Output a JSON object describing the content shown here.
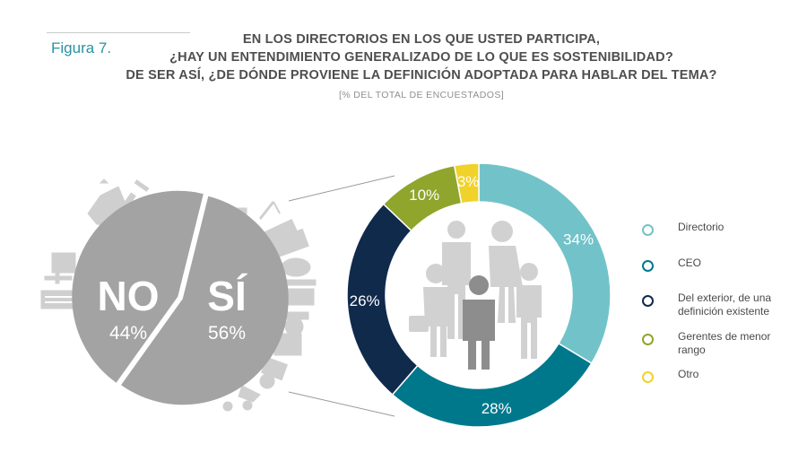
{
  "figure_label": "Figura 7.",
  "title_lines": [
    "EN LOS DIRECTORIOS EN LOS QUE USTED PARTICIPA,",
    "¿HAY UN ENTENDIMIENTO GENERALIZADO DE LO QUE ES SOSTENIBILIDAD?",
    "DE SER ASÍ, ¿DE DÓNDE PROVIENE LA DEFINICIÓN ADOPTADA PARA HABLAR DEL TEMA?"
  ],
  "subtitle": "[% DEL TOTAL DE ENCUESTADOS]",
  "chart_data": [
    {
      "type": "pie",
      "categories": [
        "NO",
        "SÍ"
      ],
      "values": [
        44,
        56
      ],
      "value_labels": [
        "44%",
        "56%"
      ],
      "colors": [
        "#a3a3a3",
        "#a3a3a3"
      ]
    },
    {
      "type": "pie",
      "categories": [
        "Directorio",
        "CEO",
        "Del exterior, de una definición existente",
        "Gerentes de menor rango",
        "Otro"
      ],
      "values": [
        34,
        28,
        26,
        10,
        3
      ],
      "value_labels": [
        "34%",
        "28%",
        "26%",
        "10%",
        "3%"
      ],
      "colors": [
        "#72c3c9",
        "#00788c",
        "#102a4c",
        "#8fa52c",
        "#f1d22a"
      ],
      "legend_position": "right"
    }
  ]
}
